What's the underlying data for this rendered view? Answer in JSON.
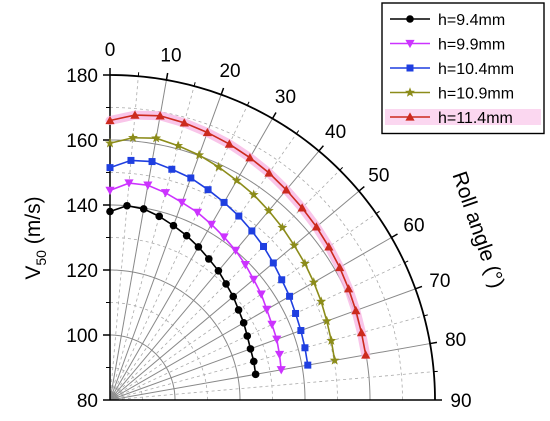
{
  "chart_data": {
    "type": "polar-line",
    "radial_axis": {
      "label_main": "V",
      "label_sub": "50",
      "label_unit": " (m/s)",
      "range": [
        80,
        180
      ],
      "ticks": [
        80,
        100,
        120,
        140,
        160,
        180
      ]
    },
    "angular_axis": {
      "label": "Roll angle (°)",
      "range": [
        0,
        90
      ],
      "ticks": [
        0,
        10,
        20,
        30,
        40,
        50,
        60,
        70,
        80,
        90
      ],
      "direction": "clockwise from vertical"
    },
    "grid": true,
    "legend_position": "top-right",
    "series": [
      {
        "name": "h=9.4mm",
        "color": "#000000",
        "marker": "circle",
        "angles": [
          0,
          5,
          10,
          15,
          20,
          25,
          30,
          35,
          40,
          45,
          50,
          55,
          60,
          65,
          70,
          75,
          80
        ],
        "values": [
          138,
          140,
          139.7,
          138.5,
          137.1,
          135.8,
          134.4,
          133,
          131.9,
          130.5,
          129.5,
          128.3,
          127.5,
          126.6,
          126,
          125.8,
          125.5
        ]
      },
      {
        "name": "h=9.9mm",
        "color": "#cc33ff",
        "marker": "triangle-down",
        "angles": [
          0,
          5,
          10,
          15,
          20,
          25,
          30,
          35,
          40,
          45,
          50,
          55,
          60,
          65,
          70,
          75,
          80
        ],
        "values": [
          144.5,
          147,
          147.1,
          146,
          144.7,
          143.7,
          142.4,
          141.2,
          140.1,
          138.9,
          137.7,
          136.8,
          135.7,
          135,
          134.6,
          134,
          133.5
        ]
      },
      {
        "name": "h=10.4mm",
        "color": "#1f3fe0",
        "marker": "square",
        "angles": [
          0,
          5,
          10,
          15,
          20,
          25,
          30,
          35,
          40,
          45,
          50,
          55,
          60,
          65,
          70,
          75,
          80
        ],
        "values": [
          151.5,
          154,
          154.5,
          153.5,
          152.7,
          151.4,
          150.2,
          149.1,
          147.9,
          146.8,
          145.6,
          144.5,
          143.8,
          143,
          142.5,
          142.1,
          141.8
        ]
      },
      {
        "name": "h=10.9mm",
        "color": "#8c8c1a",
        "marker": "star",
        "angles": [
          0,
          5,
          10,
          15,
          20,
          25,
          30,
          35,
          40,
          45,
          50,
          55,
          60,
          65,
          70,
          75,
          80
        ],
        "values": [
          159,
          161,
          161.8,
          161,
          160.2,
          159.1,
          158,
          157.1,
          156,
          155,
          154,
          153.2,
          152.4,
          151.7,
          151,
          150.5,
          150.2
        ]
      },
      {
        "name": "h=11.4mm",
        "color": "#cc2a1e",
        "marker": "triangle-up",
        "angles": [
          0,
          5,
          10,
          15,
          20,
          25,
          30,
          35,
          40,
          45,
          50,
          55,
          60,
          65,
          70,
          75,
          80
        ],
        "values": [
          166,
          168,
          168.8,
          168.3,
          167.6,
          166.9,
          166.1,
          165.3,
          164.4,
          163.6,
          162.9,
          162.2,
          161.6,
          161,
          160.5,
          160.1,
          159.9
        ]
      }
    ],
    "highlight_color": "#f7b6e4"
  }
}
